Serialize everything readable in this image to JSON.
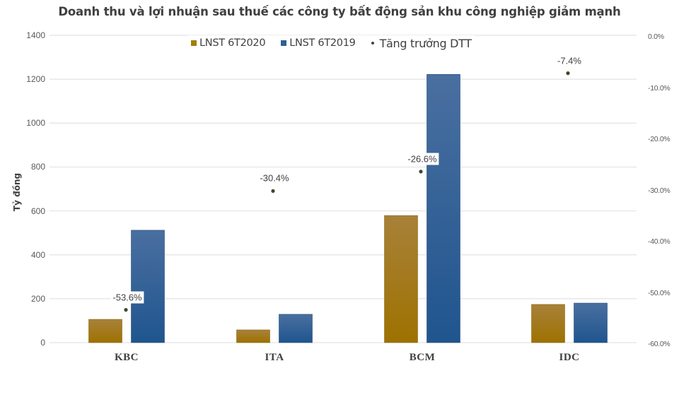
{
  "chart_data": {
    "type": "bar",
    "title": "Doanh thu và lợi nhuận sau thuế các công ty bất động sản khu công nghiệp giảm mạnh",
    "xlabel": "",
    "ylabel": "Tỷ đồng",
    "ylim": [
      0,
      1400
    ],
    "y_ticks": [
      "0",
      "200",
      "400",
      "600",
      "800",
      "1000",
      "1200",
      "1400"
    ],
    "y2lim": [
      -0.6,
      0.0
    ],
    "y2_ticks": [
      "0.0%",
      "-10.0%",
      "-20.0%",
      "-30.0%",
      "-40.0%",
      "-50.0%",
      "-60.0%"
    ],
    "categories": [
      "KBC",
      "ITA",
      "BCM",
      "IDC"
    ],
    "series": [
      {
        "name": "LNST 6T2020",
        "type": "bar",
        "axis": "left",
        "color": "#A67C00",
        "values": [
          106,
          58,
          579,
          174
        ]
      },
      {
        "name": "LNST 6T2019",
        "type": "bar",
        "axis": "left",
        "color": "#2F5F96",
        "values": [
          512,
          129,
          1222,
          180
        ]
      },
      {
        "name": "Tăng trưởng DTT",
        "type": "scatter",
        "axis": "right",
        "color": "#3A4A2A",
        "values": [
          -53.6,
          -30.4,
          -26.6,
          -7.4
        ],
        "labels": [
          "-53.6%",
          "-30.4%",
          "-26.6%",
          "-7.4%"
        ]
      }
    ],
    "grid": true,
    "legend_position": "top"
  },
  "legend": {
    "items": [
      {
        "label": "LNST 6T2020",
        "color": "#A67C00"
      },
      {
        "label": "LNST 6T2019",
        "color": "#2F5F96"
      },
      {
        "label": "Tăng trưởng DTT",
        "color": "#3A4A2A"
      }
    ]
  }
}
